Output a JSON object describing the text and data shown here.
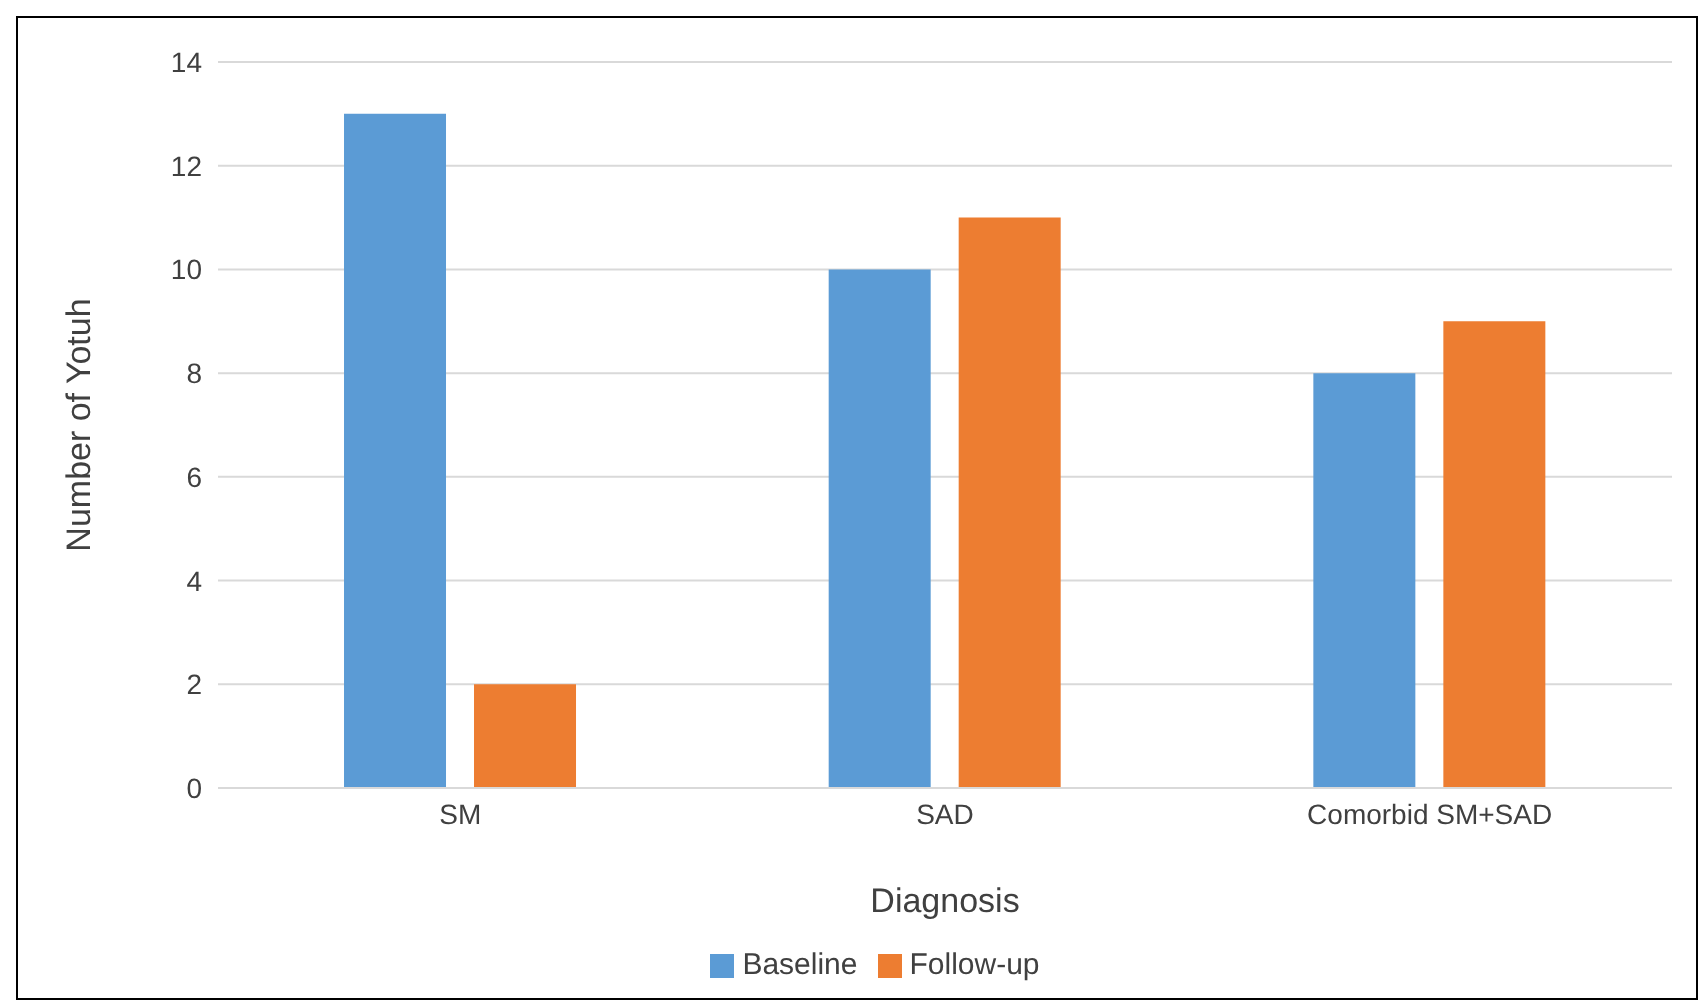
{
  "chart_data": {
    "type": "bar",
    "xlabel": "Diagnosis",
    "ylabel": "Number of Yotuh",
    "categories": [
      "SM",
      "SAD",
      "Comorbid SM+SAD"
    ],
    "series": [
      {
        "name": "Baseline",
        "color": "#5b9bd5",
        "values": [
          13,
          10,
          8
        ]
      },
      {
        "name": "Follow-up",
        "color": "#ed7d31",
        "values": [
          2,
          11,
          9
        ]
      }
    ],
    "ylim": [
      0,
      14
    ],
    "yticks": [
      0,
      2,
      4,
      6,
      8,
      10,
      12,
      14
    ],
    "grid": "y",
    "legend": "bottom"
  }
}
